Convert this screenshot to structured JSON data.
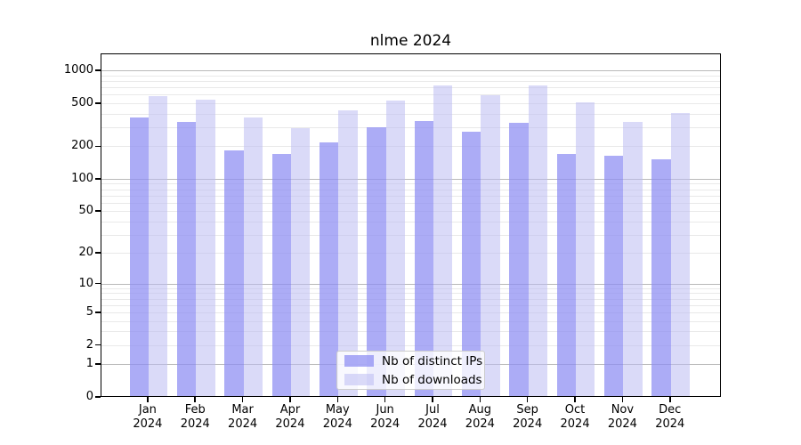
{
  "title": "nlme 2024",
  "colors": {
    "ips_bar": "rgba(140,140,242,0.72)",
    "downloads_bar": "rgba(187,187,243,0.55)",
    "grid_major": "#b9b9b9",
    "grid_minor": "#e9e9e9",
    "axis": "#000000",
    "legend_border": "#cccccc"
  },
  "legend": {
    "items": [
      {
        "label": "Nb of distinct IPs",
        "series": "ips"
      },
      {
        "label": "Nb of downloads",
        "series": "downloads"
      }
    ]
  },
  "y_axis": {
    "tick_labels": [
      "0",
      "1",
      "2",
      "5",
      "10",
      "20",
      "50",
      "100",
      "200",
      "500",
      "1000"
    ],
    "tick_values": [
      0,
      1,
      2,
      5,
      10,
      20,
      50,
      100,
      200,
      500,
      1000
    ],
    "scale": "log1p"
  },
  "x_axis": {
    "months": [
      "Jan",
      "Feb",
      "Mar",
      "Apr",
      "May",
      "Jun",
      "Jul",
      "Aug",
      "Sep",
      "Oct",
      "Nov",
      "Dec"
    ],
    "year": "2024"
  },
  "chart_data": {
    "type": "bar",
    "title": "nlme 2024",
    "categories": [
      "Jan 2024",
      "Feb 2024",
      "Mar 2024",
      "Apr 2024",
      "May 2024",
      "Jun 2024",
      "Jul 2024",
      "Aug 2024",
      "Sep 2024",
      "Oct 2024",
      "Nov 2024",
      "Dec 2024"
    ],
    "series": [
      {
        "name": "Nb of distinct IPs",
        "values": [
          365,
          330,
          178,
          165,
          213,
          295,
          335,
          265,
          320,
          165,
          160,
          150
        ]
      },
      {
        "name": "Nb of downloads",
        "values": [
          570,
          530,
          365,
          290,
          420,
          515,
          715,
          575,
          710,
          500,
          330,
          400
        ]
      }
    ],
    "xlabel": "",
    "ylabel": "",
    "yscale": "log1p",
    "yticks": [
      0,
      1,
      2,
      5,
      10,
      20,
      50,
      100,
      200,
      500,
      1000
    ],
    "ylim": [
      0,
      1400
    ],
    "grid": true,
    "legend_position": "inside-bottom-center"
  }
}
